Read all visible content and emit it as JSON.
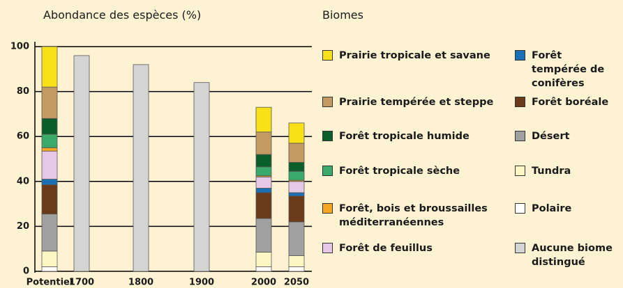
{
  "chart_data": {
    "type": "stacked_bar",
    "title": "Abondance des espèces (%)",
    "legend_title": "Biomes",
    "categories": [
      "Potentiel",
      "1700",
      "1800",
      "1900",
      "2000",
      "2050"
    ],
    "ylim": [
      0,
      100
    ],
    "yticks": [
      0,
      20,
      40,
      60,
      80,
      100
    ],
    "grid": true,
    "series": [
      {
        "name": "Prairie tropicale et savane",
        "color": "#f9e11a",
        "values": [
          18,
          null,
          null,
          null,
          11,
          9
        ]
      },
      {
        "name": "Prairie tempérée et steppe",
        "color": "#c49a63",
        "values": [
          14,
          null,
          null,
          null,
          10,
          8.5
        ]
      },
      {
        "name": "Forêt tropicale humide",
        "color": "#0a5e2a",
        "values": [
          7,
          null,
          null,
          null,
          5.5,
          4
        ]
      },
      {
        "name": "Forêt tropicale sèche",
        "color": "#3aaa6a",
        "values": [
          6,
          null,
          null,
          null,
          4,
          4
        ]
      },
      {
        "name": "Forêt, bois et broussailles méditerranéennes",
        "color": "#f5a623",
        "values": [
          1.5,
          null,
          null,
          null,
          0.5,
          0.5
        ]
      },
      {
        "name": "Forêt de feuillus",
        "color": "#e6c7e6",
        "values": [
          12.5,
          null,
          null,
          null,
          5,
          5
        ]
      },
      {
        "name": "Forêt tempérée de conifères",
        "color": "#1a6fb5",
        "values": [
          2.5,
          null,
          null,
          null,
          2,
          1.5
        ]
      },
      {
        "name": "Forêt boréale",
        "color": "#6b3a1a",
        "values": [
          13,
          null,
          null,
          null,
          11.5,
          11.5
        ]
      },
      {
        "name": "Désert",
        "color": "#a0a0a0",
        "values": [
          16.5,
          null,
          null,
          null,
          15,
          15
        ]
      },
      {
        "name": "Tundra",
        "color": "#fdf7c4",
        "values": [
          7,
          null,
          null,
          null,
          6.5,
          5
        ]
      },
      {
        "name": "Polaire",
        "color": "#ffffff",
        "values": [
          2,
          null,
          null,
          null,
          2,
          2
        ]
      },
      {
        "name": "Aucune biome distingué",
        "color": "#d4d4d4",
        "values": [
          null,
          96,
          92,
          84,
          null,
          null
        ]
      }
    ]
  }
}
